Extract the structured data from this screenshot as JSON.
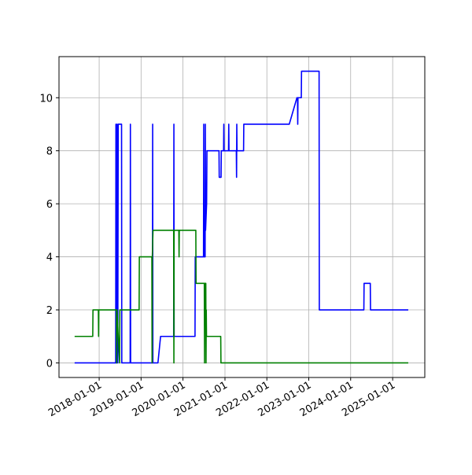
{
  "chart_data": {
    "type": "line",
    "grid": true,
    "xlim": [
      "2017-01-16",
      "2025-10-08"
    ],
    "xticks": [
      "2018-01-01",
      "2019-01-01",
      "2020-01-01",
      "2021-01-01",
      "2022-01-01",
      "2023-01-01",
      "2024-01-01",
      "2025-01-01"
    ],
    "ylim": [
      -0.55,
      11.55
    ],
    "yticks": [
      0,
      2,
      4,
      6,
      8,
      10
    ],
    "series": [
      {
        "color": "#0000ff",
        "x": [
          "2017-06-01",
          "2018-05-25",
          "2018-05-27",
          "2018-06-02",
          "2018-06-06",
          "2018-06-12",
          "2018-06-16",
          "2018-07-15",
          "2018-07-17",
          "2018-09-28",
          "2018-09-30",
          "2018-10-02",
          "2019-04-10",
          "2019-04-12",
          "2019-04-14",
          "2019-05-28",
          "2019-06-20",
          "2019-10-12",
          "2019-10-14",
          "2019-10-16",
          "2020-04-15",
          "2020-04-17",
          "2020-06-28",
          "2020-06-30",
          "2020-07-02",
          "2020-07-12",
          "2020-07-14",
          "2020-07-16",
          "2020-07-25",
          "2020-07-28",
          "2020-11-10",
          "2020-11-12",
          "2020-11-28",
          "2020-11-30",
          "2020-12-20",
          "2020-12-22",
          "2020-12-24",
          "2021-02-01",
          "2021-02-03",
          "2021-02-05",
          "2021-04-10",
          "2021-04-12",
          "2021-04-14",
          "2021-04-16",
          "2021-06-12",
          "2021-06-14",
          "2022-07-15",
          "2022-09-20",
          "2022-09-25",
          "2022-09-27",
          "2022-09-29",
          "2022-10-28",
          "2022-10-30",
          "2023-04-01",
          "2023-04-03",
          "2024-04-25",
          "2024-04-27",
          "2024-06-20",
          "2024-06-22",
          "2025-05-17"
        ],
        "values": [
          0,
          0,
          9,
          0,
          9,
          0,
          9,
          9,
          0,
          0,
          9,
          0,
          0,
          9,
          0,
          0,
          1,
          1,
          9,
          1,
          1,
          4,
          4,
          9,
          4,
          4,
          9,
          5,
          6,
          8,
          8,
          7,
          7,
          8,
          8,
          9,
          8,
          8,
          9,
          8,
          8,
          7,
          9,
          8,
          8,
          9,
          9,
          10,
          10,
          9,
          10,
          10,
          11,
          11,
          2,
          2,
          3,
          3,
          2,
          2
        ]
      },
      {
        "color": "#008000",
        "x": [
          "2017-06-01",
          "2017-11-06",
          "2017-11-08",
          "2017-12-25",
          "2017-12-27",
          "2017-12-29",
          "2018-06-01",
          "2018-06-03",
          "2018-06-05",
          "2018-06-28",
          "2018-06-30",
          "2018-12-15",
          "2018-12-17",
          "2019-04-05",
          "2019-04-07",
          "2019-04-09",
          "2019-04-15",
          "2019-10-12",
          "2019-10-14",
          "2019-10-16",
          "2019-11-26",
          "2019-11-28",
          "2019-11-30",
          "2020-04-22",
          "2020-04-24",
          "2020-07-05",
          "2020-07-07",
          "2020-07-09",
          "2020-07-18",
          "2020-07-20",
          "2020-07-22",
          "2020-07-24",
          "2020-11-25",
          "2020-11-27",
          "2025-05-17"
        ],
        "values": [
          1,
          1,
          2,
          2,
          1,
          2,
          2,
          0,
          2,
          0,
          2,
          2,
          4,
          4,
          0,
          4,
          5,
          5,
          0,
          5,
          5,
          4,
          5,
          5,
          3,
          3,
          0,
          3,
          3,
          0,
          2,
          1,
          1,
          0,
          0
        ]
      }
    ]
  }
}
